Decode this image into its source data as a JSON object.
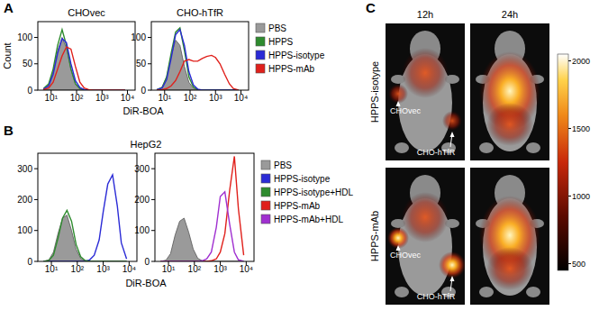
{
  "chart_data": [
    {
      "type": "line",
      "panel": "A",
      "xlabel": "DiR-BOA",
      "ylabel": "Count",
      "log": "x",
      "legend": "right",
      "xlim": [
        3,
        20000
      ],
      "xticks": [
        {
          "value": 10,
          "label": "10¹"
        },
        {
          "value": 100,
          "label": "10²"
        },
        {
          "value": 1000,
          "label": "10³"
        },
        {
          "value": 10000,
          "label": "10⁴"
        }
      ],
      "series": [
        {
          "name": "PBS",
          "color": "#9a9a9a",
          "type": "area"
        },
        {
          "name": "HPPS",
          "color": "#2e8b2e",
          "type": "line"
        },
        {
          "name": "HPPS-isotype",
          "color": "#2b2bd6",
          "type": "line"
        },
        {
          "name": "HPPS-mAb",
          "color": "#e0201b",
          "type": "line"
        }
      ],
      "subplots": [
        {
          "title": "CHOvec",
          "ylim": [
            0,
            130
          ],
          "yticks": [
            0,
            50,
            100
          ],
          "data": [
            {
              "x": [
                5,
                8,
                12,
                18,
                27,
                40,
                60,
                90,
                135,
                200,
                300,
                450,
                700,
                1000,
                1500,
                2300,
                3500,
                5000,
                8000
              ],
              "values": [
                2,
                10,
                35,
                75,
                100,
                80,
                40,
                12,
                3,
                1,
                0,
                0,
                0,
                0,
                0,
                0,
                0,
                0,
                0
              ]
            },
            {
              "x": [
                5,
                8,
                12,
                18,
                27,
                40,
                60,
                90,
                135,
                200,
                300,
                450,
                700,
                1000,
                1500,
                2300,
                3500,
                5000,
                8000
              ],
              "values": [
                3,
                12,
                40,
                85,
                115,
                85,
                40,
                12,
                3,
                1,
                0,
                0,
                0,
                0,
                0,
                0,
                0,
                0,
                0
              ]
            },
            {
              "x": [
                5,
                8,
                12,
                18,
                27,
                40,
                60,
                90,
                135,
                200,
                300,
                450,
                700,
                1000,
                1500,
                2300,
                3500,
                5000,
                8000
              ],
              "values": [
                2,
                8,
                30,
                70,
                98,
                90,
                50,
                18,
                5,
                1,
                0,
                0,
                0,
                0,
                0,
                0,
                0,
                0,
                0
              ]
            },
            {
              "x": [
                5,
                8,
                12,
                18,
                27,
                40,
                60,
                90,
                135,
                200,
                300,
                450,
                700,
                1000,
                1500,
                2300,
                3500,
                5000,
                8000
              ],
              "values": [
                1,
                4,
                15,
                40,
                65,
                82,
                78,
                45,
                15,
                4,
                1,
                0,
                0,
                0,
                0,
                0,
                0,
                0,
                0
              ]
            }
          ]
        },
        {
          "title": "CHO-hTfR",
          "ylim": [
            0,
            130
          ],
          "yticks": [
            0,
            50,
            100
          ],
          "data": [
            {
              "x": [
                5,
                8,
                12,
                18,
                27,
                40,
                60,
                90,
                135,
                200,
                300,
                450,
                700,
                1000,
                1500,
                2300,
                3500,
                5000,
                8000
              ],
              "values": [
                1,
                6,
                25,
                65,
                95,
                85,
                45,
                15,
                4,
                1,
                0,
                0,
                0,
                0,
                0,
                0,
                0,
                0,
                0
              ]
            },
            {
              "x": [
                5,
                8,
                12,
                18,
                27,
                40,
                60,
                90,
                135,
                200,
                300,
                450,
                700,
                1000,
                1500,
                2300,
                3500,
                5000,
                8000
              ],
              "values": [
                1,
                5,
                25,
                70,
                110,
                118,
                75,
                25,
                6,
                1,
                0,
                0,
                0,
                0,
                0,
                0,
                0,
                0,
                0
              ]
            },
            {
              "x": [
                5,
                8,
                12,
                18,
                27,
                40,
                60,
                90,
                135,
                200,
                300,
                450,
                700,
                1000,
                1500,
                2300,
                3500,
                5000,
                8000
              ],
              "values": [
                1,
                4,
                20,
                60,
                105,
                115,
                85,
                35,
                10,
                2,
                0,
                0,
                0,
                0,
                0,
                0,
                0,
                0,
                0
              ]
            },
            {
              "x": [
                5,
                8,
                12,
                18,
                27,
                40,
                60,
                90,
                135,
                200,
                300,
                450,
                700,
                1000,
                1500,
                2300,
                3500,
                5000,
                8000
              ],
              "values": [
                0,
                1,
                3,
                8,
                18,
                35,
                55,
                58,
                55,
                55,
                60,
                64,
                66,
                62,
                50,
                30,
                12,
                3,
                0
              ]
            }
          ]
        }
      ]
    },
    {
      "type": "line",
      "panel": "B",
      "xlabel": "DiR-BOA",
      "log": "x",
      "legend": "right",
      "xlim": [
        3,
        20000
      ],
      "xticks": [
        {
          "value": 10,
          "label": "10¹"
        },
        {
          "value": 100,
          "label": "10²"
        },
        {
          "value": 1000,
          "label": "10³"
        },
        {
          "value": 10000,
          "label": "10⁴"
        }
      ],
      "series": [
        {
          "name": "PBS",
          "color": "#9a9a9a",
          "type": "area"
        },
        {
          "name": "HPPS-isotype",
          "color": "#2b2bd6",
          "type": "line"
        },
        {
          "name": "HPPS-isotype+HDL",
          "color": "#2e8b2e",
          "type": "line"
        },
        {
          "name": "HPPS-mAb",
          "color": "#e0201b",
          "type": "line"
        },
        {
          "name": "HPPS-mAb+HDL",
          "color": "#a030d0",
          "type": "line"
        }
      ],
      "subplots": [
        {
          "title": "HepG2",
          "ylim": [
            0,
            350
          ],
          "yticks": [
            0,
            100,
            200,
            300
          ],
          "data": [
            {
              "x": [
                5,
                8,
                12,
                18,
                27,
                40,
                60,
                90,
                135,
                200,
                300,
                450,
                700,
                1000,
                1500,
                2300,
                3500,
                5000,
                8000
              ],
              "values": [
                0,
                5,
                30,
                90,
                140,
                150,
                100,
                40,
                10,
                2,
                0,
                0,
                0,
                0,
                0,
                0,
                0,
                0,
                0
              ]
            },
            {
              "x": [
                5,
                8,
                12,
                18,
                27,
                40,
                60,
                90,
                135,
                200,
                300,
                450,
                700,
                1000,
                1500,
                2300,
                3500,
                5000,
                8000
              ],
              "values": [
                0,
                0,
                0,
                0,
                0,
                0,
                0,
                0,
                0,
                0,
                5,
                20,
                70,
                160,
                250,
                280,
                180,
                60,
                8
              ]
            },
            {
              "x": [
                5,
                8,
                12,
                18,
                27,
                40,
                60,
                90,
                135,
                200,
                300,
                450,
                700,
                1000,
                1500,
                2300,
                3500,
                5000,
                8000
              ],
              "values": [
                0,
                3,
                20,
                75,
                140,
                165,
                130,
                55,
                15,
                3,
                0,
                0,
                0,
                0,
                0,
                0,
                0,
                0,
                0
              ]
            },
            null,
            null
          ]
        },
        {
          "ylim": [
            0,
            350
          ],
          "yticks": [
            0,
            100,
            200,
            300
          ],
          "data": [
            {
              "x": [
                5,
                8,
                12,
                18,
                27,
                40,
                60,
                90,
                135,
                200,
                300,
                450,
                700,
                1000,
                1500,
                2300,
                3500,
                5000,
                8000
              ],
              "values": [
                0,
                4,
                25,
                85,
                130,
                140,
                95,
                40,
                10,
                2,
                0,
                0,
                0,
                0,
                0,
                0,
                0,
                0,
                0
              ]
            },
            null,
            null,
            {
              "x": [
                5,
                8,
                12,
                18,
                27,
                40,
                60,
                90,
                135,
                200,
                300,
                450,
                700,
                1000,
                1500,
                2300,
                3500,
                5000,
                8000
              ],
              "values": [
                0,
                0,
                0,
                0,
                0,
                0,
                0,
                0,
                0,
                0,
                0,
                2,
                8,
                30,
                90,
                230,
                340,
                170,
                20
              ]
            },
            {
              "x": [
                5,
                8,
                12,
                18,
                27,
                40,
                60,
                90,
                135,
                200,
                300,
                450,
                700,
                1000,
                1500,
                2300,
                3500,
                5000,
                8000
              ],
              "values": [
                0,
                0,
                0,
                0,
                0,
                0,
                0,
                0,
                0,
                2,
                8,
                30,
                110,
                210,
                225,
                120,
                30,
                5,
                0
              ]
            }
          ]
        }
      ]
    },
    {
      "type": "image_grid",
      "panel": "C",
      "columns": [
        "12h",
        "24h"
      ],
      "rows": [
        "HPPS-isotype",
        "HPPS-mAb"
      ],
      "annotations": [
        "CHOvec",
        "CHO-hTfR"
      ],
      "colorbar": {
        "range": [
          450,
          2050
        ],
        "ticks": [
          500,
          1000,
          1500,
          2000
        ]
      }
    }
  ]
}
